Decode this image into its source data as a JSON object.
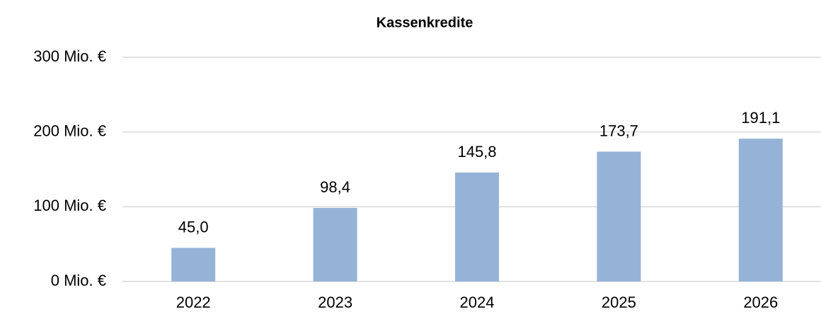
{
  "chart_data": {
    "type": "bar",
    "title": "Kassenkredite",
    "categories": [
      "2022",
      "2023",
      "2024",
      "2025",
      "2026"
    ],
    "values": [
      45.0,
      98.4,
      145.8,
      173.7,
      191.1
    ],
    "value_labels": [
      "45,0",
      "98,4",
      "145,8",
      "173,7",
      "191,1"
    ],
    "color": "#95b3d7",
    "ylim": [
      0,
      300
    ],
    "yticks": [
      {
        "value": 0,
        "label": "0 Mio. €"
      },
      {
        "value": 100,
        "label": "100 Mio. €"
      },
      {
        "value": 200,
        "label": "200 Mio. €"
      },
      {
        "value": 300,
        "label": "300 Mio. €"
      }
    ],
    "grid": true
  }
}
